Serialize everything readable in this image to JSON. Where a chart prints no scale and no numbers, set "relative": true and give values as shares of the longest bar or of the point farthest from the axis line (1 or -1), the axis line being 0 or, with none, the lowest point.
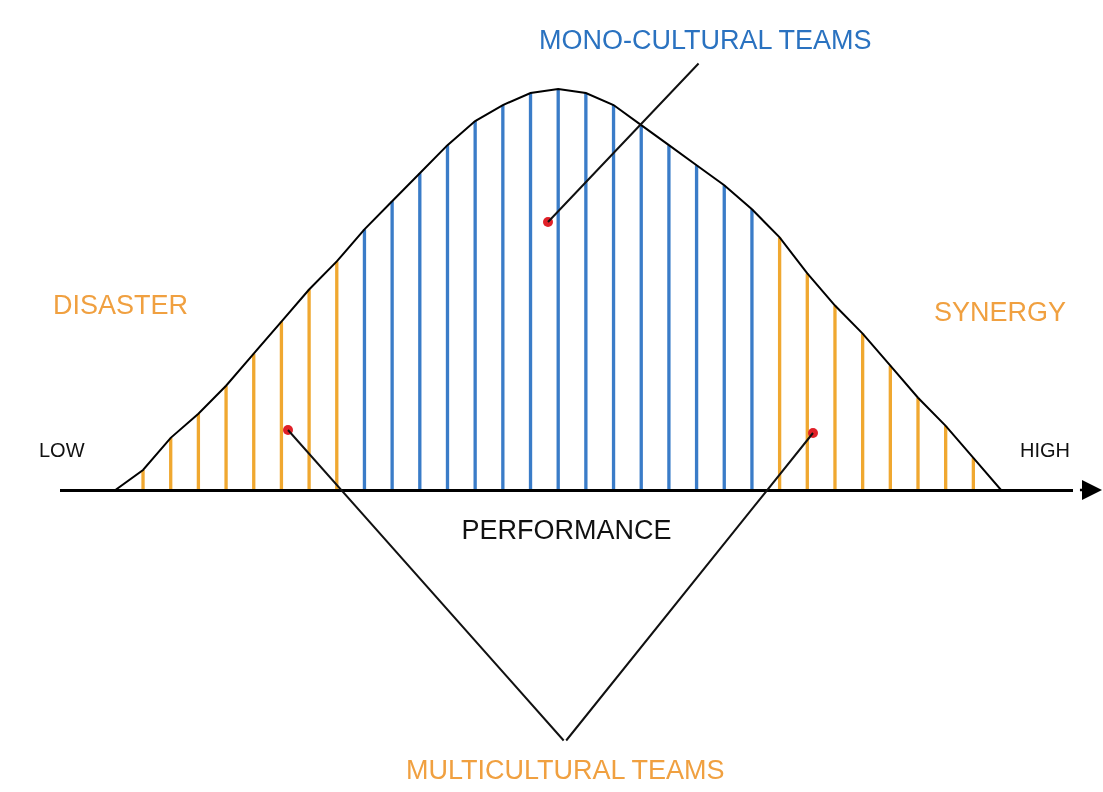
{
  "chart_data": [
    {
      "type": "bar",
      "relative": true,
      "categories": [
        null,
        null,
        null,
        null,
        null,
        null,
        null,
        null,
        null,
        null,
        null,
        null,
        null,
        null,
        null,
        null,
        null,
        null,
        null,
        null,
        null,
        null,
        null,
        null,
        null,
        null,
        null,
        null,
        null,
        null,
        null
      ],
      "colors": [
        "#f0a830",
        "#f0a830",
        "#f0a830",
        "#f0a830",
        "#f0a830",
        "#f0a830",
        "#f0a830",
        "#f0a830",
        "#3a7cc8",
        "#3a7cc8",
        "#3a7cc8",
        "#3a7cc8",
        "#3a7cc8",
        "#3a7cc8",
        "#3a7cc8",
        "#3a7cc8",
        "#3a7cc8",
        "#3a7cc8",
        "#3a7cc8",
        "#3a7cc8",
        "#3a7cc8",
        "#3a7cc8",
        "#3a7cc8",
        "#f0a830",
        "#f0a830",
        "#f0a830",
        "#f0a830",
        "#f0a830",
        "#f0a830",
        "#f0a830",
        "#f0a830"
      ],
      "values": [
        0.05,
        0.13,
        0.19,
        0.26,
        0.34,
        0.42,
        0.5,
        0.57,
        0.65,
        0.72,
        0.79,
        0.86,
        0.92,
        0.96,
        0.99,
        1.0,
        0.99,
        0.96,
        0.91,
        0.86,
        0.81,
        0.76,
        0.7,
        0.63,
        0.54,
        0.46,
        0.39,
        0.31,
        0.23,
        0.16,
        0.08
      ]
    },
    {
      "type": "line",
      "relative": true,
      "xlabel": "PERFORMANCE",
      "annotations": [
        "MONO-CULTURAL TEAMS",
        "DISASTER",
        "SYNERGY",
        "LOW",
        "HIGH",
        "MULTICULTURAL TEAMS"
      ],
      "categories": [
        null,
        null,
        null,
        null,
        null,
        null,
        null,
        null,
        null,
        null,
        null,
        null,
        null,
        null,
        null,
        null,
        null,
        null,
        null,
        null,
        null,
        null,
        null,
        null,
        null,
        null,
        null,
        null,
        null,
        null,
        null,
        null,
        null
      ],
      "color": "#000000",
      "values": [
        0,
        0.05,
        0.13,
        0.19,
        0.26,
        0.34,
        0.42,
        0.5,
        0.57,
        0.65,
        0.72,
        0.79,
        0.86,
        0.92,
        0.96,
        0.99,
        1.0,
        0.99,
        0.96,
        0.91,
        0.86,
        0.81,
        0.76,
        0.7,
        0.63,
        0.54,
        0.46,
        0.39,
        0.31,
        0.23,
        0.16,
        0.08,
        0
      ]
    }
  ]
}
